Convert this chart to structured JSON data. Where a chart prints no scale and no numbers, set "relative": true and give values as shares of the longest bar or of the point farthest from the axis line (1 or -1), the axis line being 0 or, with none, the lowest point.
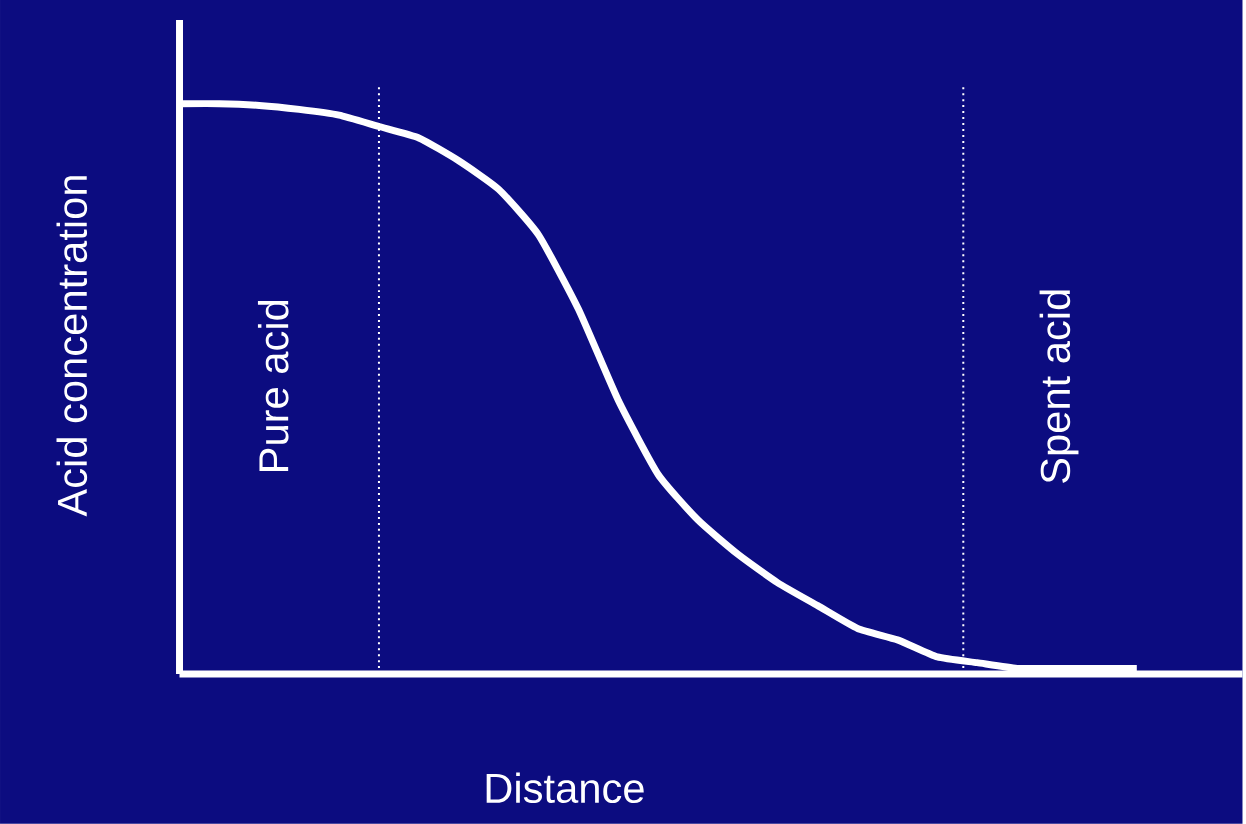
{
  "chart_data": {
    "type": "line",
    "relative": true,
    "xlabel": "Distance",
    "ylabel": "Acid concentration",
    "categories": [
      null,
      null,
      null,
      null,
      null,
      null,
      null,
      null,
      null,
      null,
      null,
      null,
      null,
      null,
      null,
      null,
      null,
      null,
      null,
      null,
      null,
      null,
      null,
      null,
      null
    ],
    "series": [
      {
        "color": "#ffffff",
        "values": [
          1.0,
          1.0,
          0.997,
          0.99,
          0.98,
          0.96,
          0.94,
          0.9,
          0.85,
          0.77,
          0.64,
          0.48,
          0.35,
          0.27,
          0.21,
          0.16,
          0.12,
          0.08,
          0.06,
          0.03,
          0.02,
          0.01,
          0.01,
          0.01,
          0.01
        ]
      }
    ],
    "annotations": [
      "Pure acid",
      "Spent acid"
    ],
    "marker": "none",
    "line_style": "solid"
  }
}
